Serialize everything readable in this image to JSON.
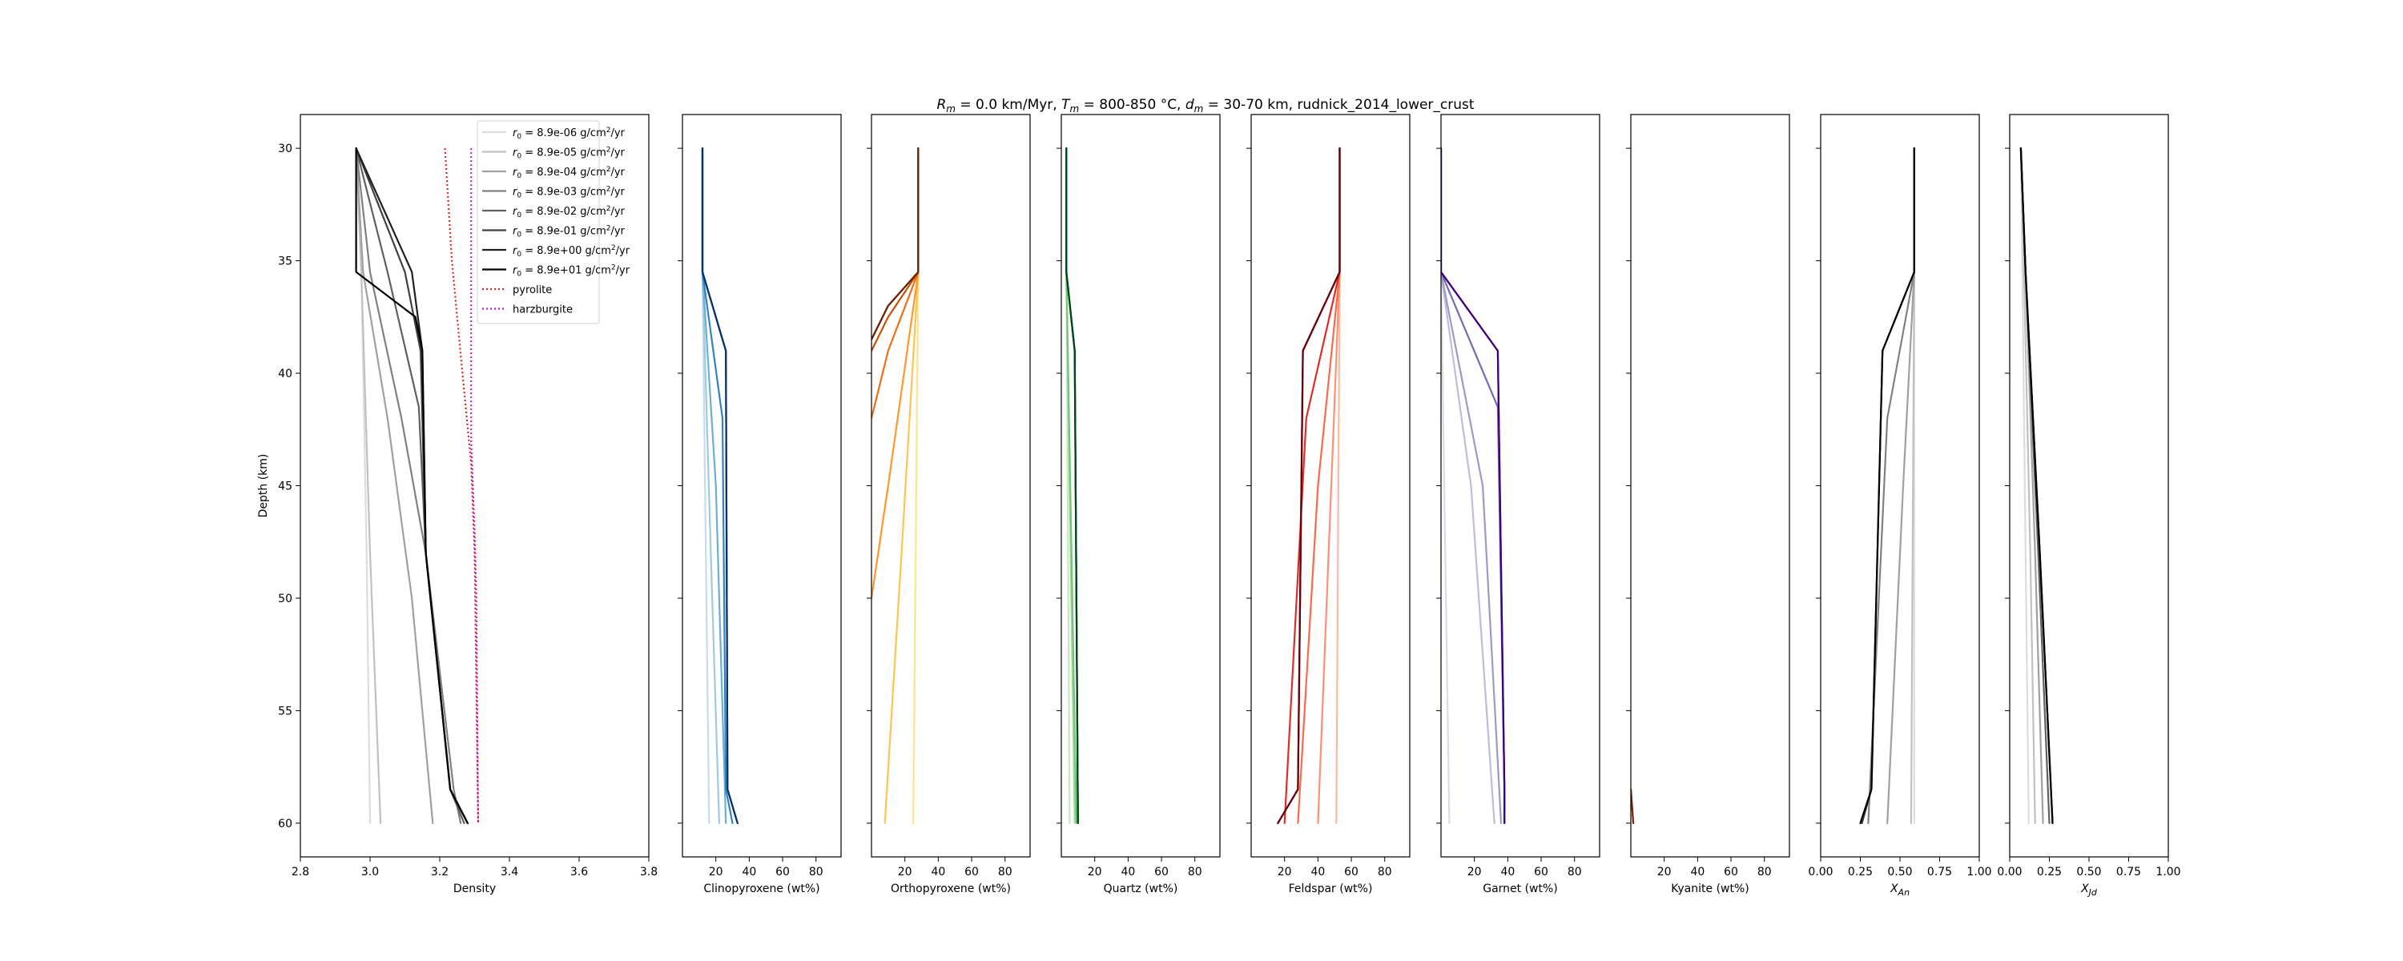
{
  "figure": {
    "title_prefix_R": "R",
    "title_sub_m": "m",
    "title_eq1": " = 0.0 km/Myr, ",
    "title_T": "T",
    "title_eq2": " = 800-850 °C, ",
    "title_d": "d",
    "title_eq3": " = 30-70 km, rudnick_2014_lower_crust"
  },
  "chart_data": [
    {
      "type": "line",
      "id": "density",
      "xlabel": "Density",
      "ylabel": "Depth (km)",
      "xlim": [
        2.8,
        3.8
      ],
      "ylim": [
        61.5,
        28.5
      ],
      "xticks": [
        2.8,
        3.0,
        3.2,
        3.4,
        3.6,
        3.8
      ],
      "xtick_labels": [
        "2.8",
        "3.0",
        "3.2",
        "3.4",
        "3.6",
        "3.8"
      ],
      "yticks": [
        30,
        35,
        40,
        45,
        50,
        55,
        60
      ],
      "ytick_labels": [
        "30",
        "35",
        "40",
        "45",
        "50",
        "55",
        "60"
      ],
      "legend_position": "top-right",
      "legend": [
        {
          "pre": "r",
          "sub": "0",
          "post": " = 8.9e-06 g/cm",
          "sup": "2",
          "tail": "/yr",
          "color": "#dcdcdc",
          "dash": ""
        },
        {
          "pre": "r",
          "sub": "0",
          "post": " = 8.9e-05 g/cm",
          "sup": "2",
          "tail": "/yr",
          "color": "#c0c0c0",
          "dash": ""
        },
        {
          "pre": "r",
          "sub": "0",
          "post": " = 8.9e-04 g/cm",
          "sup": "2",
          "tail": "/yr",
          "color": "#a0a0a0",
          "dash": ""
        },
        {
          "pre": "r",
          "sub": "0",
          "post": " = 8.9e-03 g/cm",
          "sup": "2",
          "tail": "/yr",
          "color": "#808080",
          "dash": ""
        },
        {
          "pre": "r",
          "sub": "0",
          "post": " = 8.9e-02 g/cm",
          "sup": "2",
          "tail": "/yr",
          "color": "#606060",
          "dash": ""
        },
        {
          "pre": "r",
          "sub": "0",
          "post": " = 8.9e-01 g/cm",
          "sup": "2",
          "tail": "/yr",
          "color": "#404040",
          "dash": ""
        },
        {
          "pre": "r",
          "sub": "0",
          "post": " = 8.9e+00 g/cm",
          "sup": "2",
          "tail": "/yr",
          "color": "#202020",
          "dash": ""
        },
        {
          "pre": "r",
          "sub": "0",
          "post": " = 8.9e+01 g/cm",
          "sup": "2",
          "tail": "/yr",
          "color": "#000000",
          "dash": ""
        },
        {
          "pre": "pyrolite",
          "sub": "",
          "post": "",
          "sup": "",
          "tail": "",
          "color": "#d62728",
          "dash": "2,3"
        },
        {
          "pre": "harzburgite",
          "sub": "",
          "post": "",
          "sup": "",
          "tail": "",
          "color": "#c020c0",
          "dash": "2,3"
        }
      ],
      "series": [
        {
          "color": "#dcdcdc",
          "x": [
            2.96,
            2.975,
            2.99,
            3.0
          ],
          "y": [
            30,
            35.5,
            48,
            60
          ]
        },
        {
          "color": "#c0c0c0",
          "x": [
            2.96,
            2.975,
            3.0,
            3.03
          ],
          "y": [
            30,
            35.5,
            48,
            60
          ]
        },
        {
          "color": "#a0a0a0",
          "x": [
            2.96,
            2.98,
            3.05,
            3.12,
            3.18
          ],
          "y": [
            30,
            35.5,
            42,
            50,
            60
          ]
        },
        {
          "color": "#808080",
          "x": [
            2.96,
            3.0,
            3.09,
            3.16,
            3.24,
            3.26
          ],
          "y": [
            30,
            35.5,
            42,
            48,
            58.5,
            60
          ]
        },
        {
          "color": "#606060",
          "x": [
            2.96,
            3.05,
            3.14,
            3.16,
            3.23,
            3.27
          ],
          "y": [
            30,
            35.5,
            41.5,
            48,
            58.5,
            60
          ]
        },
        {
          "color": "#404040",
          "x": [
            2.96,
            3.1,
            3.145,
            3.16,
            3.23,
            3.28
          ],
          "y": [
            30,
            35.5,
            39,
            48,
            58.5,
            60
          ]
        },
        {
          "color": "#202020",
          "x": [
            2.96,
            3.12,
            3.15,
            3.16,
            3.23,
            3.28
          ],
          "y": [
            30,
            35.5,
            39,
            48,
            58.5,
            60
          ]
        },
        {
          "color": "#000000",
          "x": [
            2.96,
            2.96,
            3.13,
            3.15,
            3.16,
            3.23,
            3.28
          ],
          "y": [
            30,
            35.5,
            37.5,
            39,
            48,
            58.5,
            60
          ]
        },
        {
          "color": "#d62728",
          "dash": "2,3",
          "x": [
            3.215,
            3.235,
            3.265,
            3.29,
            3.3,
            3.31
          ],
          "y": [
            30,
            35,
            40,
            44,
            48,
            60
          ]
        },
        {
          "color": "#c020c0",
          "dash": "2,3",
          "x": [
            3.29,
            3.29,
            3.3,
            3.305,
            3.31
          ],
          "y": [
            30,
            43,
            47,
            50,
            60
          ]
        }
      ]
    },
    {
      "type": "line",
      "id": "clinopyroxene",
      "xlabel": "Clinopyroxene (wt%)",
      "xlim": [
        0,
        95
      ],
      "ylim": [
        61.5,
        28.5
      ],
      "xticks": [
        20,
        40,
        60,
        80
      ],
      "xtick_labels": [
        "20",
        "40",
        "60",
        "80"
      ],
      "series": [
        {
          "color": "#c6dbef",
          "x": [
            12,
            12,
            16
          ],
          "y": [
            30,
            35.5,
            60
          ]
        },
        {
          "color": "#9ecae1",
          "x": [
            12,
            12,
            17,
            22
          ],
          "y": [
            30,
            35.5,
            48,
            60
          ]
        },
        {
          "color": "#6baed6",
          "x": [
            12,
            12,
            20,
            26
          ],
          "y": [
            30,
            35.5,
            45,
            60
          ]
        },
        {
          "color": "#3182bd",
          "x": [
            12,
            12,
            24,
            26,
            30
          ],
          "y": [
            30,
            35.5,
            42,
            58.5,
            60
          ]
        },
        {
          "color": "#08519c",
          "x": [
            12,
            12,
            26,
            27,
            33
          ],
          "y": [
            30,
            35.5,
            39,
            58.5,
            60
          ]
        },
        {
          "color": "#08306b",
          "x": [
            12,
            12,
            26,
            27,
            33
          ],
          "y": [
            30,
            35.5,
            39,
            58.5,
            60
          ]
        }
      ]
    },
    {
      "type": "line",
      "id": "orthopyroxene",
      "xlabel": "Orthopyroxene (wt%)",
      "xlim": [
        0,
        95
      ],
      "ylim": [
        61.5,
        28.5
      ],
      "xticks": [
        20,
        40,
        60,
        80
      ],
      "xtick_labels": [
        "20",
        "40",
        "60",
        "80"
      ],
      "series": [
        {
          "color": "#fee391",
          "x": [
            28,
            28,
            25
          ],
          "y": [
            30,
            35.5,
            60
          ]
        },
        {
          "color": "#fec44f",
          "x": [
            28,
            28,
            18,
            8
          ],
          "y": [
            30,
            35.5,
            48,
            60
          ]
        },
        {
          "color": "#fe9929",
          "x": [
            28,
            28,
            10,
            0
          ],
          "y": [
            30,
            35.5,
            45,
            50
          ]
        },
        {
          "color": "#ec7014",
          "x": [
            28,
            28,
            10,
            0
          ],
          "y": [
            30,
            35.5,
            39,
            42
          ]
        },
        {
          "color": "#cc4c02",
          "x": [
            28,
            28,
            10,
            0
          ],
          "y": [
            30,
            35.5,
            37.5,
            39
          ]
        },
        {
          "color": "#8c2d04",
          "x": [
            28,
            28,
            10,
            0
          ],
          "y": [
            30,
            35.5,
            37,
            38.5
          ]
        },
        {
          "color": "#662506",
          "x": [
            28,
            28,
            10,
            0
          ],
          "y": [
            30,
            35.5,
            37,
            38.5
          ]
        }
      ]
    },
    {
      "type": "line",
      "id": "quartz",
      "xlabel": "Quartz (wt%)",
      "xlim": [
        0,
        95
      ],
      "ylim": [
        61.5,
        28.5
      ],
      "xticks": [
        20,
        40,
        60,
        80
      ],
      "xtick_labels": [
        "20",
        "40",
        "60",
        "80"
      ],
      "series": [
        {
          "color": "#c7e9c0",
          "x": [
            3,
            3,
            5
          ],
          "y": [
            30,
            35.5,
            60
          ]
        },
        {
          "color": "#a1d99b",
          "x": [
            3,
            3,
            8
          ],
          "y": [
            30,
            35.5,
            60
          ]
        },
        {
          "color": "#74c476",
          "x": [
            3,
            3,
            9
          ],
          "y": [
            30,
            35.5,
            60
          ]
        },
        {
          "color": "#31a354",
          "x": [
            3,
            3,
            8,
            10
          ],
          "y": [
            30,
            35.5,
            39,
            60
          ]
        },
        {
          "color": "#006d2c",
          "x": [
            3,
            3,
            8,
            10
          ],
          "y": [
            30,
            35.5,
            39,
            60
          ]
        },
        {
          "color": "#00441b",
          "x": [
            3,
            3,
            8,
            10
          ],
          "y": [
            30,
            35.5,
            39,
            60
          ]
        }
      ]
    },
    {
      "type": "line",
      "id": "feldspar",
      "xlabel": "Feldspar (wt%)",
      "xlim": [
        0,
        95
      ],
      "ylim": [
        61.5,
        28.5
      ],
      "xticks": [
        20,
        40,
        60,
        80
      ],
      "xtick_labels": [
        "20",
        "40",
        "60",
        "80"
      ],
      "series": [
        {
          "color": "#fcbba1",
          "x": [
            53,
            53,
            51
          ],
          "y": [
            30,
            35.5,
            60
          ]
        },
        {
          "color": "#fc9272",
          "x": [
            53,
            53,
            40
          ],
          "y": [
            30,
            35.5,
            60
          ]
        },
        {
          "color": "#fb6a4a",
          "x": [
            53,
            53,
            40,
            28
          ],
          "y": [
            30,
            35.5,
            45,
            60
          ]
        },
        {
          "color": "#de2d26",
          "x": [
            53,
            53,
            33,
            20
          ],
          "y": [
            30,
            35.5,
            42,
            60
          ]
        },
        {
          "color": "#a50f15",
          "x": [
            53,
            53,
            31,
            28,
            16
          ],
          "y": [
            30,
            35.5,
            39,
            58.5,
            60
          ]
        },
        {
          "color": "#67000d",
          "x": [
            53,
            53,
            31,
            28,
            16
          ],
          "y": [
            30,
            35.5,
            39,
            58.5,
            60
          ]
        }
      ]
    },
    {
      "type": "line",
      "id": "garnet",
      "xlabel": "Garnet (wt%)",
      "xlim": [
        0,
        95
      ],
      "ylim": [
        61.5,
        28.5
      ],
      "xticks": [
        20,
        40,
        60,
        80
      ],
      "xtick_labels": [
        "20",
        "40",
        "60",
        "80"
      ],
      "series": [
        {
          "color": "#dadaeb",
          "x": [
            0,
            0,
            5
          ],
          "y": [
            30,
            35.5,
            60
          ]
        },
        {
          "color": "#bcbddc",
          "x": [
            0,
            0,
            18,
            32
          ],
          "y": [
            30,
            35.5,
            45,
            60
          ]
        },
        {
          "color": "#9e9ac8",
          "x": [
            0,
            0,
            25,
            36
          ],
          "y": [
            30,
            35.5,
            45,
            60
          ]
        },
        {
          "color": "#756bb1",
          "x": [
            0,
            0,
            34,
            38,
            38
          ],
          "y": [
            30,
            35.5,
            41.5,
            58.5,
            60
          ]
        },
        {
          "color": "#54278f",
          "x": [
            0,
            0,
            34,
            38,
            38
          ],
          "y": [
            30,
            35.5,
            39,
            58.5,
            60
          ]
        },
        {
          "color": "#3f007d",
          "x": [
            0,
            0,
            34,
            38,
            38
          ],
          "y": [
            30,
            35.5,
            39,
            58.5,
            60
          ]
        }
      ]
    },
    {
      "type": "line",
      "id": "kyanite",
      "xlabel": "Kyanite (wt%)",
      "xlim": [
        0,
        95
      ],
      "ylim": [
        61.5,
        28.5
      ],
      "xticks": [
        20,
        40,
        60,
        80
      ],
      "xtick_labels": [
        "20",
        "40",
        "60",
        "80"
      ],
      "series": [
        {
          "color": "#d94801",
          "x": [
            0,
            1.5
          ],
          "y": [
            58.5,
            60
          ]
        },
        {
          "color": "#7f2704",
          "x": [
            0,
            1.5
          ],
          "y": [
            58.5,
            60
          ]
        }
      ]
    },
    {
      "type": "line",
      "id": "x_an",
      "xlabel_main": "X",
      "xlabel_sub": "An",
      "xlim": [
        0,
        1
      ],
      "ylim": [
        61.5,
        28.5
      ],
      "xticks": [
        0,
        0.25,
        0.5,
        0.75,
        1.0
      ],
      "xtick_labels": [
        "0.00",
        "0.25",
        "0.50",
        "0.75",
        "1.00"
      ],
      "series": [
        {
          "color": "#dcdcdc",
          "x": [
            0.59,
            0.59,
            0.59
          ],
          "y": [
            30,
            35.5,
            60
          ]
        },
        {
          "color": "#c0c0c0",
          "x": [
            0.59,
            0.59,
            0.57
          ],
          "y": [
            30,
            35.5,
            60
          ]
        },
        {
          "color": "#a0a0a0",
          "x": [
            0.59,
            0.59,
            0.52,
            0.42
          ],
          "y": [
            30,
            35.5,
            45,
            60
          ]
        },
        {
          "color": "#808080",
          "x": [
            0.59,
            0.59,
            0.42,
            0.3
          ],
          "y": [
            30,
            35.5,
            42,
            60
          ]
        },
        {
          "color": "#404040",
          "x": [
            0.59,
            0.59,
            0.39,
            0.32,
            0.26
          ],
          "y": [
            30,
            35.5,
            39,
            58.5,
            60
          ]
        },
        {
          "color": "#000000",
          "x": [
            0.59,
            0.59,
            0.39,
            0.32,
            0.25
          ],
          "y": [
            30,
            35.5,
            39,
            58.5,
            60
          ]
        }
      ]
    },
    {
      "type": "line",
      "id": "x_jd",
      "xlabel_main": "X",
      "xlabel_sub": "Jd",
      "xlim": [
        0,
        1
      ],
      "ylim": [
        61.5,
        28.5
      ],
      "xticks": [
        0,
        0.25,
        0.5,
        0.75,
        1.0
      ],
      "xtick_labels": [
        "0.00",
        "0.25",
        "0.50",
        "0.75",
        "1.00"
      ],
      "series": [
        {
          "color": "#dcdcdc",
          "x": [
            0.07,
            0.08,
            0.1,
            0.12
          ],
          "y": [
            30,
            35.5,
            48,
            60
          ]
        },
        {
          "color": "#c0c0c0",
          "x": [
            0.07,
            0.09,
            0.13,
            0.16
          ],
          "y": [
            30,
            35.5,
            48,
            60
          ]
        },
        {
          "color": "#a0a0a0",
          "x": [
            0.07,
            0.1,
            0.16,
            0.21
          ],
          "y": [
            30,
            35.5,
            48,
            60
          ]
        },
        {
          "color": "#606060",
          "x": [
            0.07,
            0.1,
            0.18,
            0.25
          ],
          "y": [
            30,
            35.5,
            48,
            60
          ]
        },
        {
          "color": "#202020",
          "x": [
            0.07,
            0.1,
            0.19,
            0.27
          ],
          "y": [
            30,
            35.5,
            48,
            60
          ]
        },
        {
          "color": "#000000",
          "x": [
            0.07,
            0.1,
            0.19,
            0.27
          ],
          "y": [
            30,
            35.5,
            48,
            60
          ]
        }
      ]
    }
  ]
}
